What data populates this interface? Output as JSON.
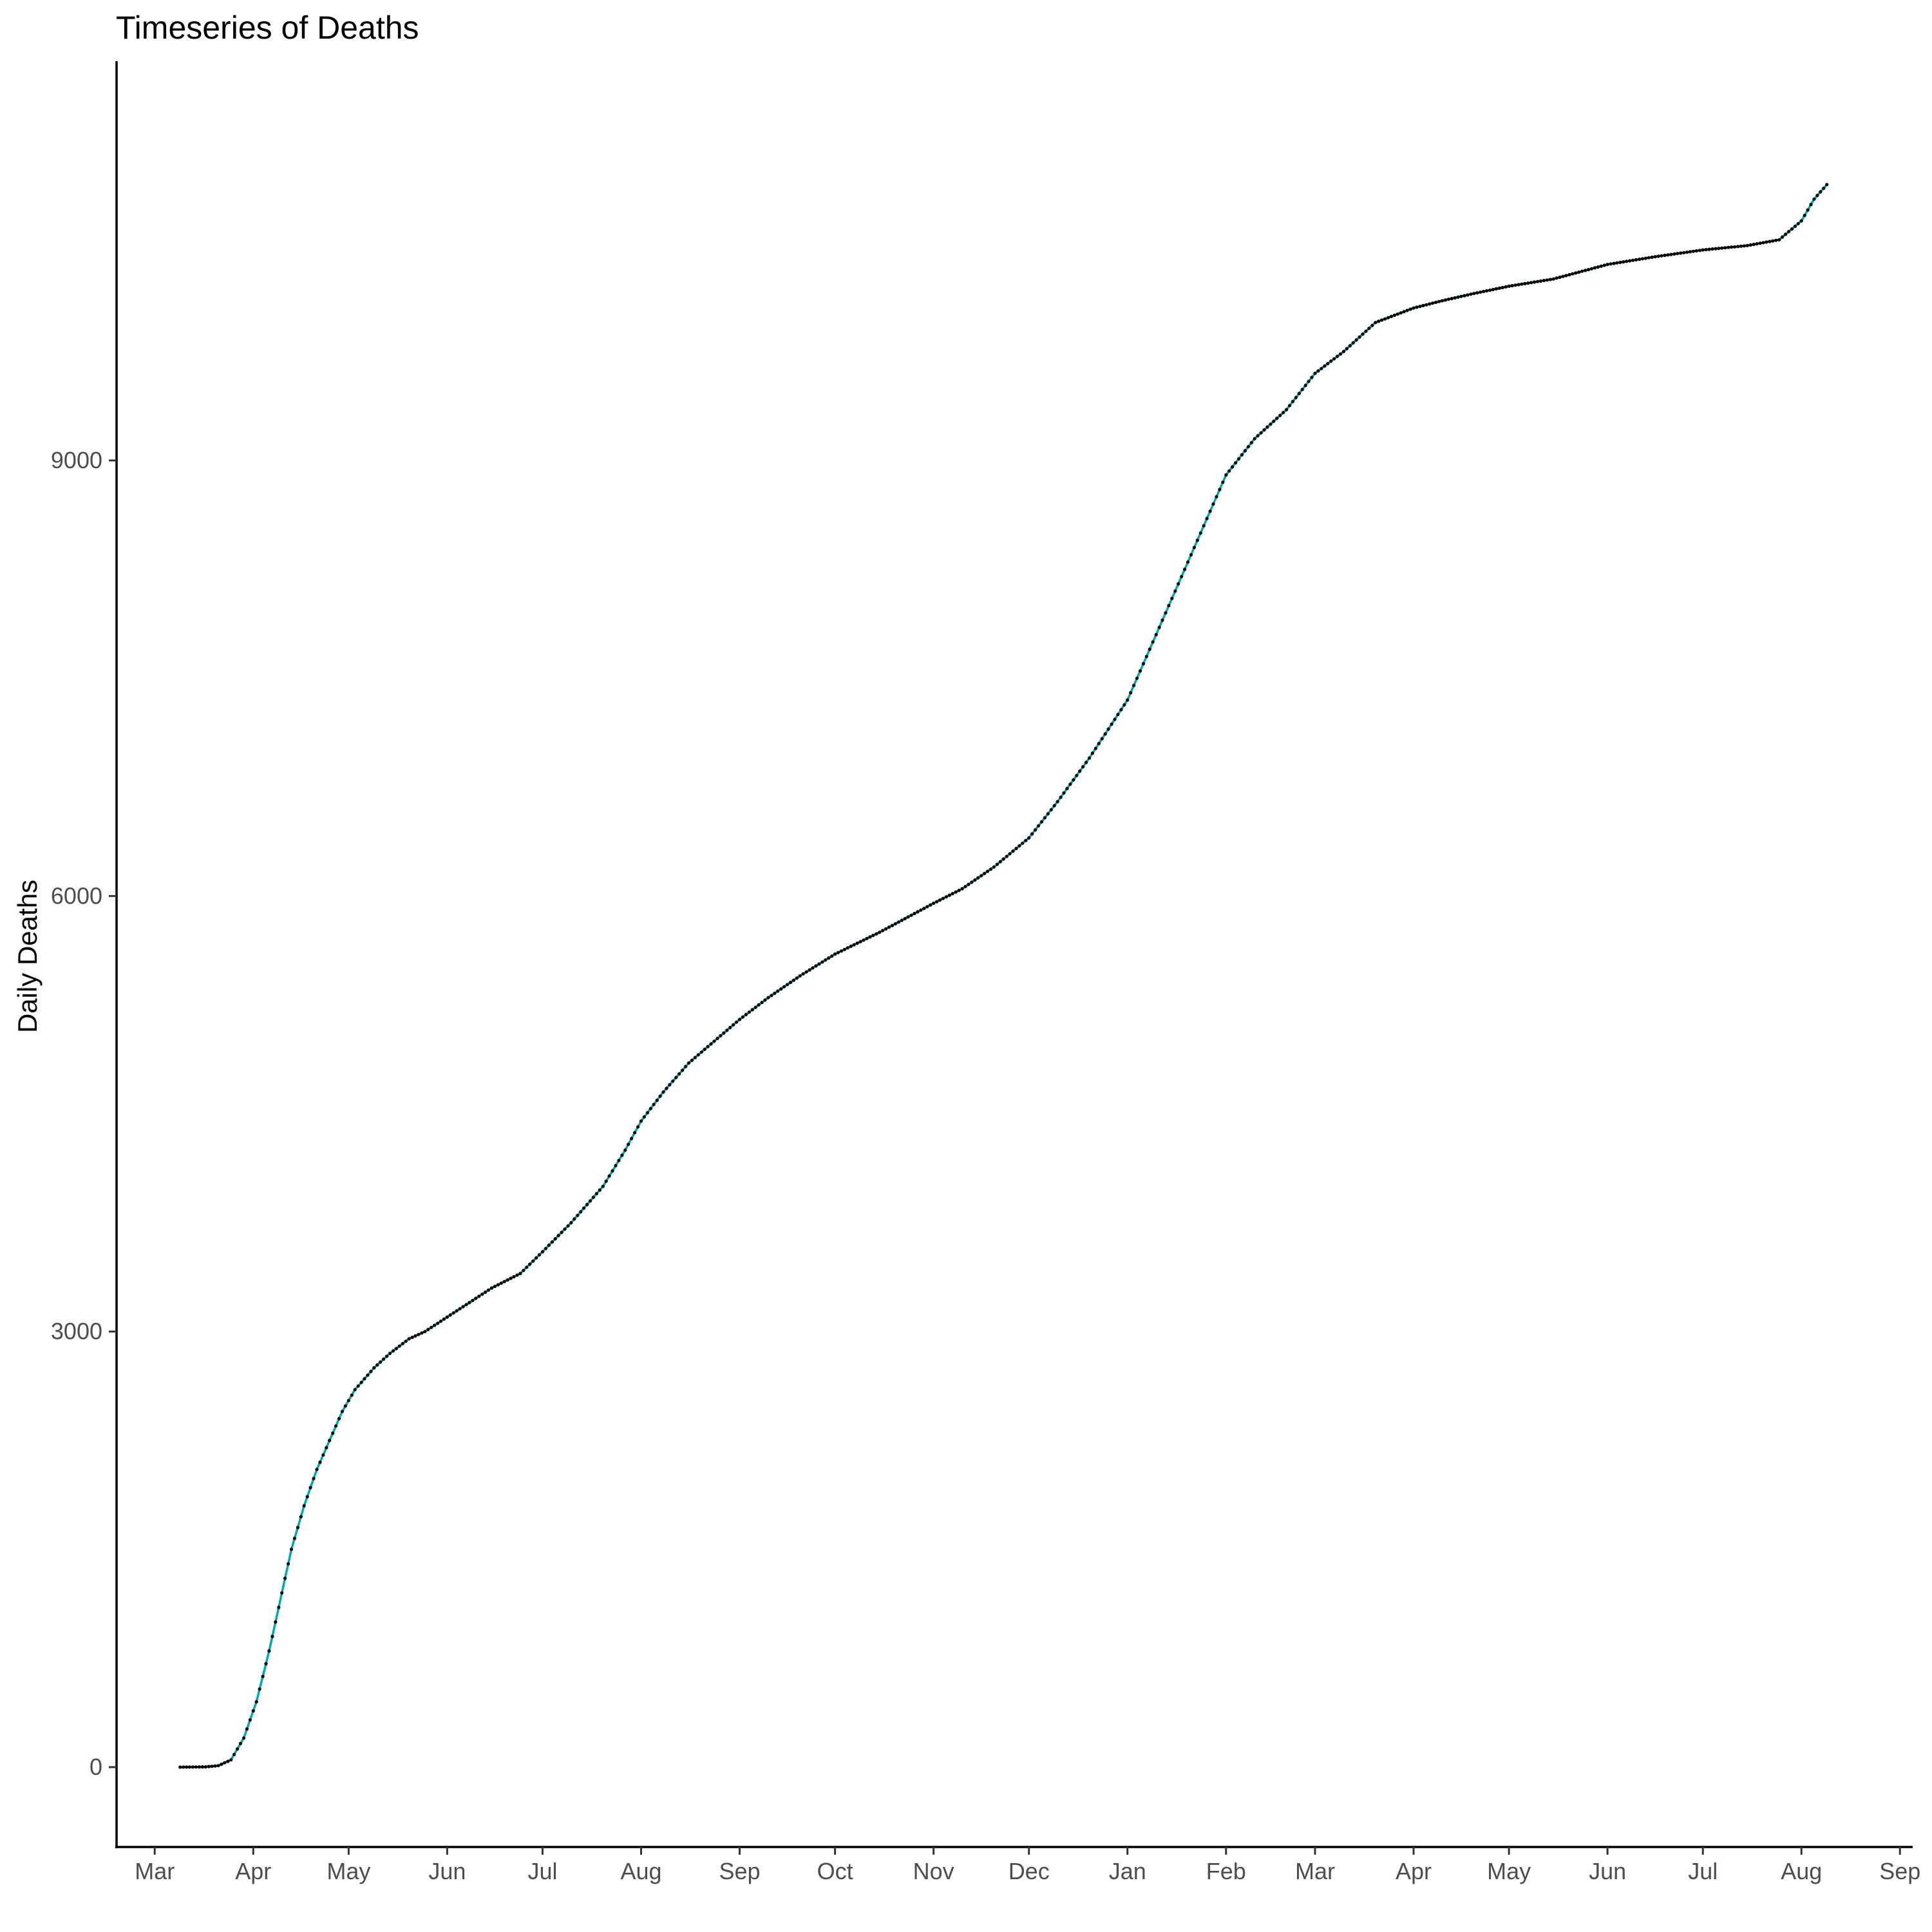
{
  "chart_data": {
    "type": "line",
    "title": "Timeseries of Deaths",
    "xlabel": "",
    "ylabel": "Daily Deaths",
    "x_start": "2020-03-09",
    "x_end": "2021-08-09",
    "xlim": [
      "2020-02-18",
      "2021-09-05"
    ],
    "ylim": [
      -550,
      11750
    ],
    "y_ticks": [
      0,
      3000,
      6000,
      9000
    ],
    "y_tick_labels": [
      "0",
      "3000",
      "6000",
      "9000"
    ],
    "x_ticks": [
      "2020-03-01",
      "2020-04-01",
      "2020-05-01",
      "2020-06-01",
      "2020-07-01",
      "2020-08-01",
      "2020-09-01",
      "2020-10-01",
      "2020-11-01",
      "2020-12-01",
      "2021-01-01",
      "2021-02-01",
      "2021-03-01",
      "2021-04-01",
      "2021-05-01",
      "2021-06-01",
      "2021-07-01",
      "2021-08-01",
      "2021-09-01"
    ],
    "x_tick_labels": [
      "Mar",
      "Apr",
      "May",
      "Jun",
      "Jul",
      "Aug",
      "Sep",
      "Oct",
      "Nov",
      "Dec",
      "Jan",
      "Feb",
      "Mar",
      "Apr",
      "May",
      "Jun",
      "Jul",
      "Aug",
      "Sep"
    ],
    "grid": false,
    "legend": "none",
    "line_color": "#00a9b0",
    "point_color": "#000000",
    "series": [
      {
        "x": [
          "2020-03-09",
          "2020-03-17",
          "2020-03-21",
          "2020-03-25",
          "2020-03-29",
          "2020-04-02",
          "2020-04-06",
          "2020-04-10",
          "2020-04-13",
          "2020-04-17",
          "2020-04-21",
          "2020-04-25",
          "2020-04-29",
          "2020-05-03",
          "2020-05-09",
          "2020-05-14",
          "2020-05-20",
          "2020-05-25",
          "2020-06-01",
          "2020-06-08",
          "2020-06-15",
          "2020-06-24",
          "2020-07-01",
          "2020-07-10",
          "2020-07-20",
          "2020-07-27",
          "2020-08-01",
          "2020-08-08",
          "2020-08-16",
          "2020-08-24",
          "2020-09-01",
          "2020-09-10",
          "2020-09-20",
          "2020-10-01",
          "2020-10-15",
          "2020-11-01",
          "2020-11-10",
          "2020-11-20",
          "2020-12-01",
          "2020-12-10",
          "2020-12-20",
          "2021-01-01",
          "2021-01-08",
          "2021-01-16",
          "2021-01-24",
          "2021-02-01",
          "2021-02-10",
          "2021-02-20",
          "2021-03-01",
          "2021-03-10",
          "2021-03-20",
          "2021-04-01",
          "2021-04-10",
          "2021-04-20",
          "2021-05-01",
          "2021-05-15",
          "2021-06-01",
          "2021-06-15",
          "2021-07-01",
          "2021-07-15",
          "2021-07-25",
          "2021-08-01",
          "2021-08-05",
          "2021-08-09"
        ],
        "values": [
          0,
          2,
          10,
          50,
          200,
          450,
          800,
          1200,
          1500,
          1800,
          2050,
          2250,
          2450,
          2600,
          2750,
          2850,
          2950,
          3000,
          3100,
          3200,
          3300,
          3400,
          3550,
          3750,
          4000,
          4250,
          4450,
          4650,
          4850,
          5000,
          5150,
          5300,
          5450,
          5600,
          5750,
          5950,
          6050,
          6200,
          6400,
          6650,
          6950,
          7350,
          7700,
          8100,
          8500,
          8900,
          9150,
          9350,
          9600,
          9750,
          9950,
          10050,
          10100,
          10150,
          10200,
          10250,
          10350,
          10400,
          10450,
          10480,
          10520,
          10650,
          10800,
          10900
        ]
      }
    ]
  }
}
